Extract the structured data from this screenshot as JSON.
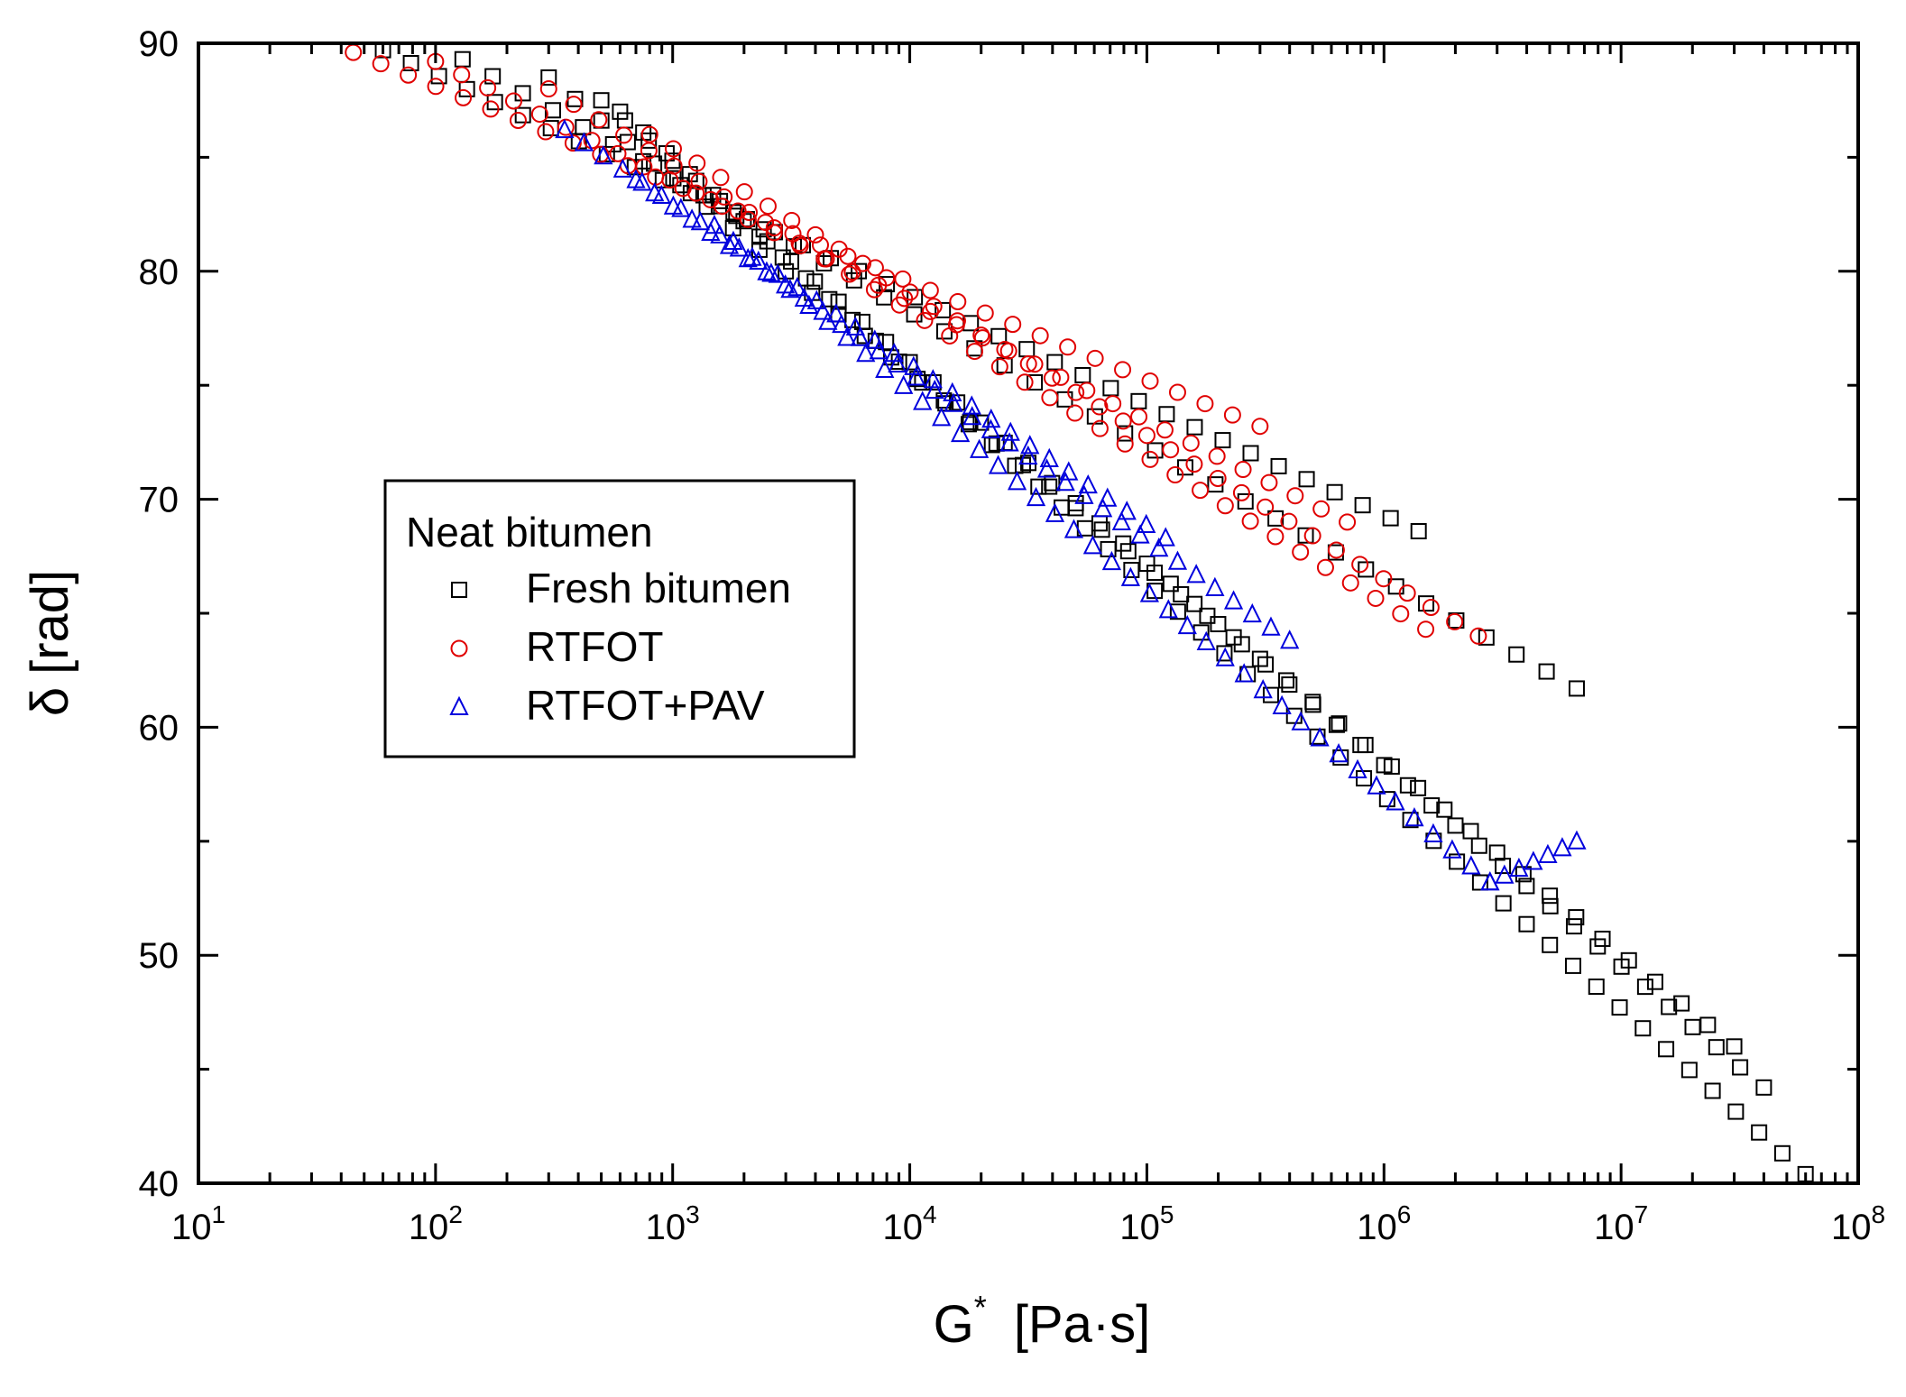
{
  "chart_data": {
    "type": "scatter",
    "xscale": "log",
    "xlim": [
      10,
      100000000
    ],
    "ylim": [
      40,
      90
    ],
    "xlabel_main": "G",
    "xlabel_sup": "*",
    "xlabel_unit": "[Pa·s]",
    "ylabel_symbol": "δ",
    "ylabel_unit": "[rad]",
    "x_ticks": [
      {
        "base": "10",
        "exp": "1",
        "value": 10
      },
      {
        "base": "10",
        "exp": "2",
        "value": 100
      },
      {
        "base": "10",
        "exp": "3",
        "value": 1000
      },
      {
        "base": "10",
        "exp": "4",
        "value": 10000
      },
      {
        "base": "10",
        "exp": "5",
        "value": 100000
      },
      {
        "base": "10",
        "exp": "6",
        "value": 1000000
      },
      {
        "base": "10",
        "exp": "7",
        "value": 10000000
      },
      {
        "base": "10",
        "exp": "8",
        "value": 100000000
      }
    ],
    "y_ticks": [
      "40",
      "50",
      "60",
      "70",
      "80",
      "90"
    ],
    "legend": {
      "title": "Neat bitumen",
      "position": "center-left",
      "entries": [
        {
          "label": "Fresh bitumen",
          "marker": "square",
          "color": "#000000"
        },
        {
          "label": "RTFOT",
          "marker": "circle",
          "color": "#e00000"
        },
        {
          "label": "RTFOT+PAV",
          "marker": "triangle",
          "color": "#0000dd"
        }
      ]
    },
    "series": [
      {
        "name": "Fresh bitumen",
        "marker": "square",
        "color": "#000000",
        "curves": [
          {
            "start": [
              60,
              89.7
            ],
            "end": [
              1400000,
              68.6
            ],
            "n": 38
          },
          {
            "start": [
              130,
              89.3
            ],
            "end": [
              6500000,
              61.7
            ],
            "n": 38
          },
          {
            "start": [
              300,
              88.5
            ],
            "end": [
              30000000,
              46.0
            ],
            "n": 46
          },
          {
            "start": [
              500,
              87.5
            ],
            "end": [
              40000000,
              44.2
            ],
            "n": 50
          },
          {
            "start": [
              600,
              87.0
            ],
            "end": [
              60000000,
              40.4
            ],
            "n": 52
          }
        ]
      },
      {
        "name": "RTFOT",
        "marker": "circle",
        "color": "#e00000",
        "curves": [
          {
            "start": [
              45,
              89.6
            ],
            "end": [
              300000,
              73.2
            ],
            "n": 34
          },
          {
            "start": [
              100,
              89.2
            ],
            "end": [
              700000,
              69.0
            ],
            "n": 36
          },
          {
            "start": [
              300,
              88.0
            ],
            "end": [
              1500000,
              64.3
            ],
            "n": 36
          },
          {
            "start": [
              800,
              86.0
            ],
            "end": [
              2500000,
              64.0
            ],
            "n": 36
          }
        ]
      },
      {
        "name": "RTFOT+PAV",
        "marker": "triangle",
        "color": "#0000dd",
        "curves": [
          {
            "start": [
              350,
              86.2
            ],
            "end": [
              120000,
              68.3
            ],
            "n": 32
          },
          {
            "start": [
              700,
              84.0
            ],
            "end": [
              400000,
              63.8
            ],
            "n": 36
          },
          {
            "start": [
              1500,
              82.0
            ],
            "end": [
              2800000,
              53.2
            ],
            "n": 42
          },
          {
            "start": [
              2800000,
              53.2
            ],
            "end": [
              6500000,
              55.0
            ],
            "n": 7
          }
        ]
      }
    ]
  }
}
